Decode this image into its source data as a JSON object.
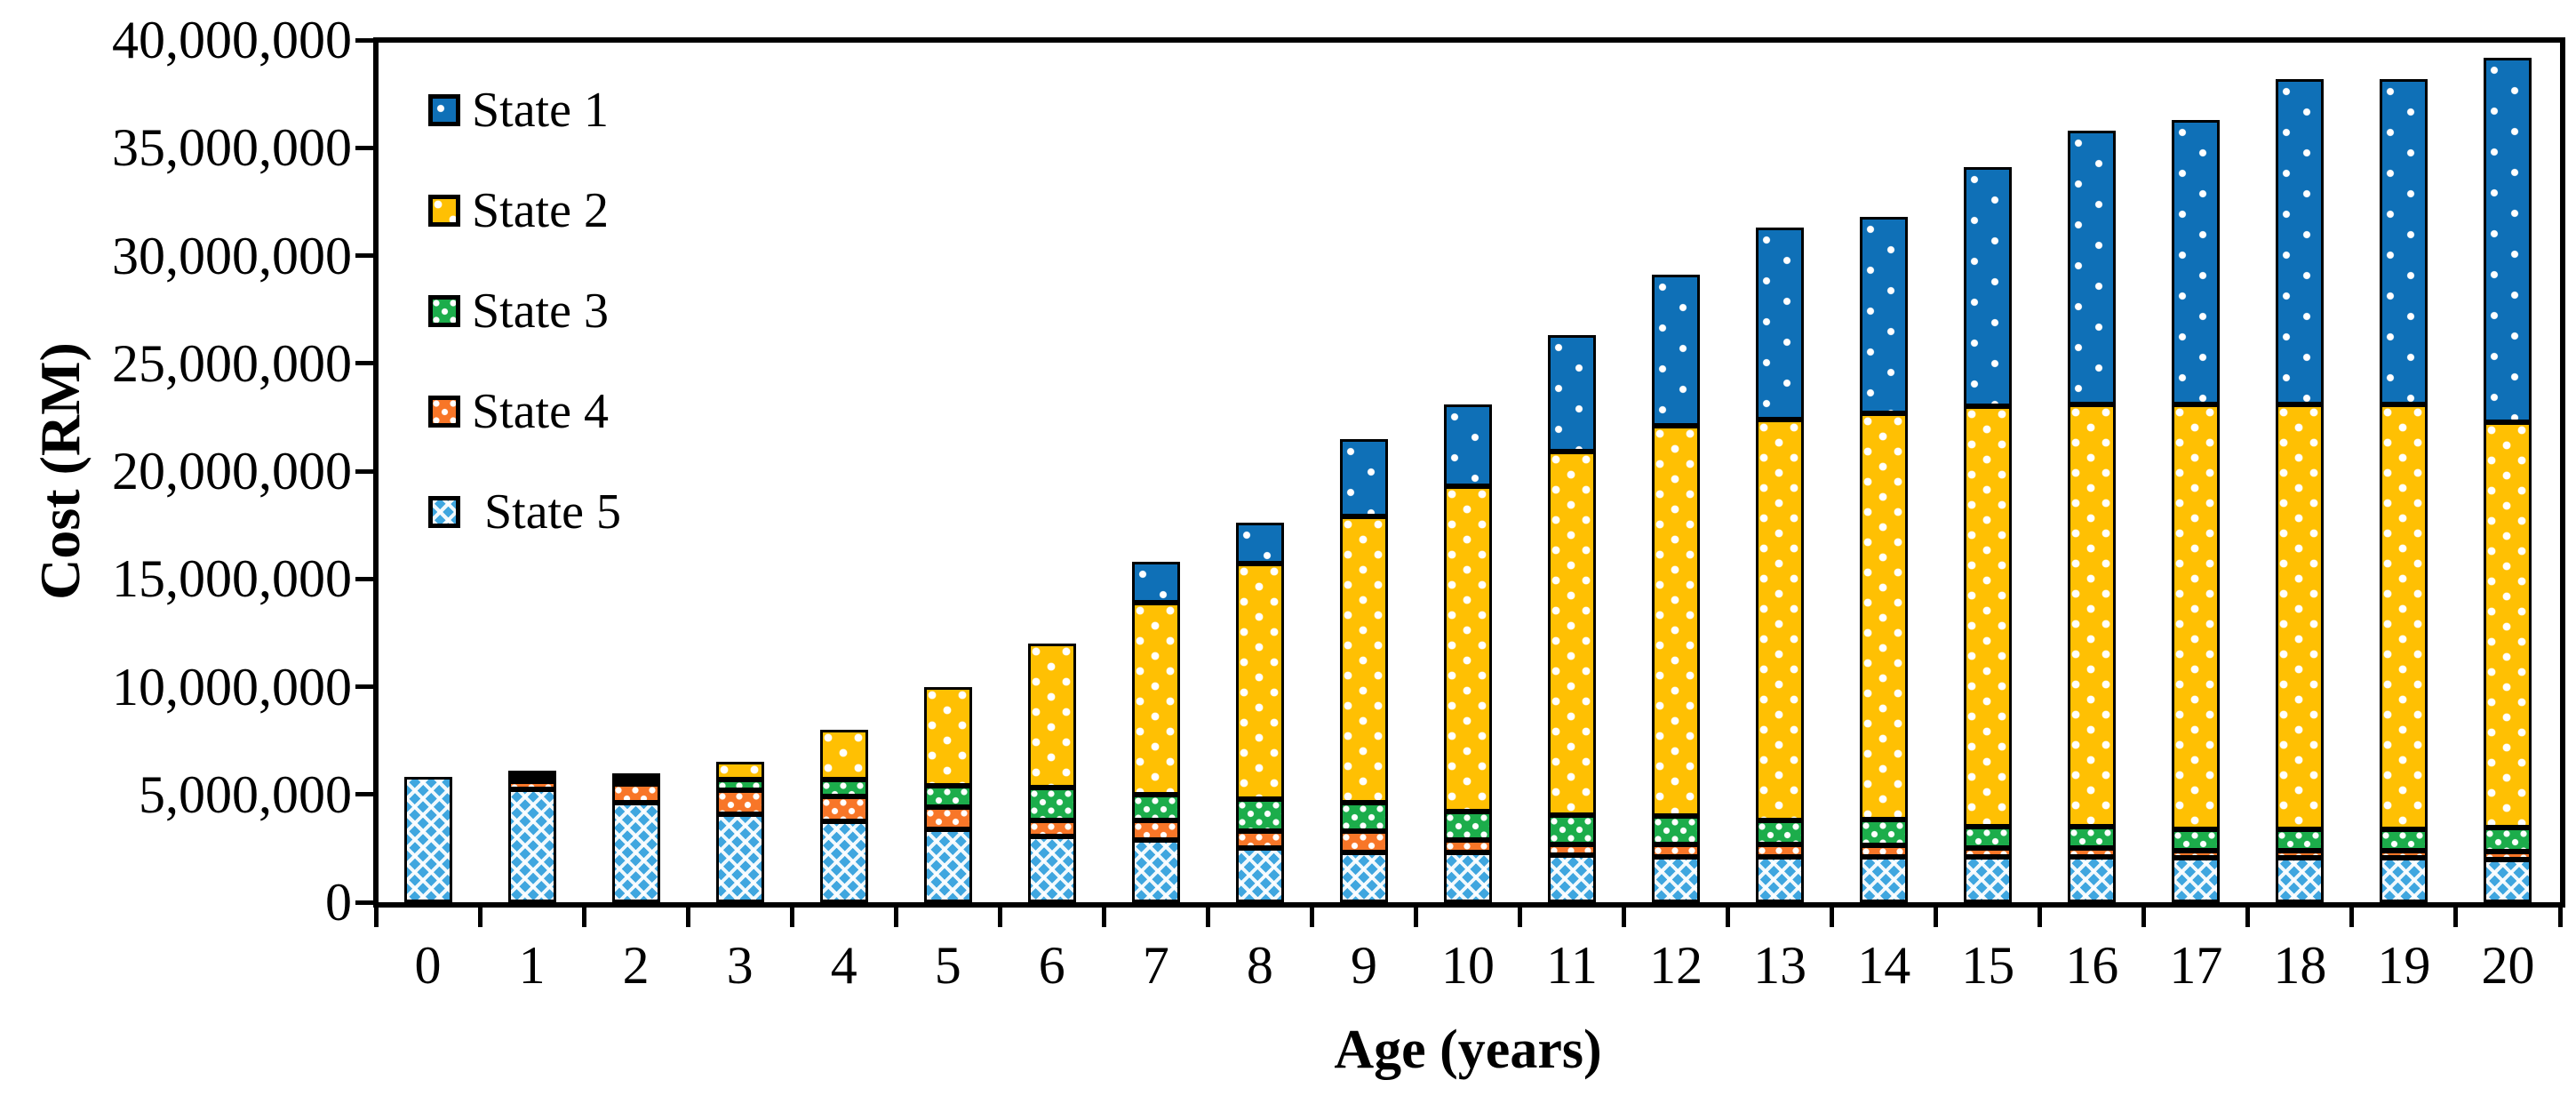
{
  "chart_data": {
    "type": "bar",
    "stacked": true,
    "title": "",
    "xlabel": "Age (years)",
    "ylabel": "Cost (RM)",
    "categories": [
      "0",
      "1",
      "2",
      "3",
      "4",
      "5",
      "6",
      "7",
      "8",
      "9",
      "10",
      "11",
      "12",
      "13",
      "14",
      "15",
      "16",
      "17",
      "18",
      "19",
      "20"
    ],
    "ylim": [
      0,
      40000000
    ],
    "grid": false,
    "frame": "full-box",
    "y_ticks": [
      {
        "value": 0,
        "label": "0"
      },
      {
        "value": 5000000,
        "label": "5,000,000"
      },
      {
        "value": 10000000,
        "label": "10,000,000"
      },
      {
        "value": 15000000,
        "label": "15,000,000"
      },
      {
        "value": 20000000,
        "label": "20,000,000"
      },
      {
        "value": 25000000,
        "label": "25,000,000"
      },
      {
        "value": 30000000,
        "label": "30,000,000"
      },
      {
        "value": 35000000,
        "label": "35,000,000"
      },
      {
        "value": 40000000,
        "label": "40,000,000"
      }
    ],
    "legend_position": "inside-top-left",
    "series": [
      {
        "name": "State 5",
        "legend_label": " State 5",
        "color": "#3fa6df",
        "pattern": "diag-crosshatch",
        "values": [
          5800000,
          5250000,
          4600000,
          4100000,
          3750000,
          3400000,
          3050000,
          2900000,
          2500000,
          2300000,
          2300000,
          2200000,
          2100000,
          2100000,
          2100000,
          2100000,
          2100000,
          2050000,
          2050000,
          2050000,
          2000000
        ]
      },
      {
        "name": "State 4",
        "legend_label": "State 4",
        "color": "#f87628",
        "pattern": "dots-fine",
        "values": [
          0,
          350000,
          900000,
          1100000,
          1150000,
          1000000,
          750000,
          900000,
          800000,
          1000000,
          600000,
          500000,
          600000,
          600000,
          550000,
          400000,
          400000,
          350000,
          350000,
          350000,
          370000
        ]
      },
      {
        "name": "State 3",
        "legend_label": "State 3",
        "color": "#1cad4b",
        "pattern": "dots-fine",
        "values": [
          0,
          50000,
          80000,
          500000,
          800000,
          1000000,
          1500000,
          1200000,
          1500000,
          1300000,
          1300000,
          1350000,
          1300000,
          1100000,
          1200000,
          1000000,
          1000000,
          1000000,
          1000000,
          1000000,
          1110000
        ]
      },
      {
        "name": "State 2",
        "legend_label": "State 2",
        "color": "#ffc003",
        "pattern": "dots-medium",
        "values": [
          0,
          100000,
          170000,
          800000,
          2300000,
          4600000,
          6700000,
          8900000,
          10900000,
          13300000,
          15100000,
          16850000,
          18100000,
          18600000,
          18850000,
          19500000,
          19600000,
          19700000,
          19700000,
          19700000,
          18800000
        ]
      },
      {
        "name": "State 1",
        "legend_label": "State 1",
        "color": "#0f70b7",
        "pattern": "dots-sparse",
        "values": [
          0,
          0,
          0,
          0,
          0,
          0,
          0,
          1900000,
          1900000,
          3600000,
          3800000,
          5400000,
          7000000,
          8900000,
          9100000,
          11100000,
          12700000,
          13200000,
          15100000,
          15100000,
          16900000
        ]
      }
    ]
  }
}
